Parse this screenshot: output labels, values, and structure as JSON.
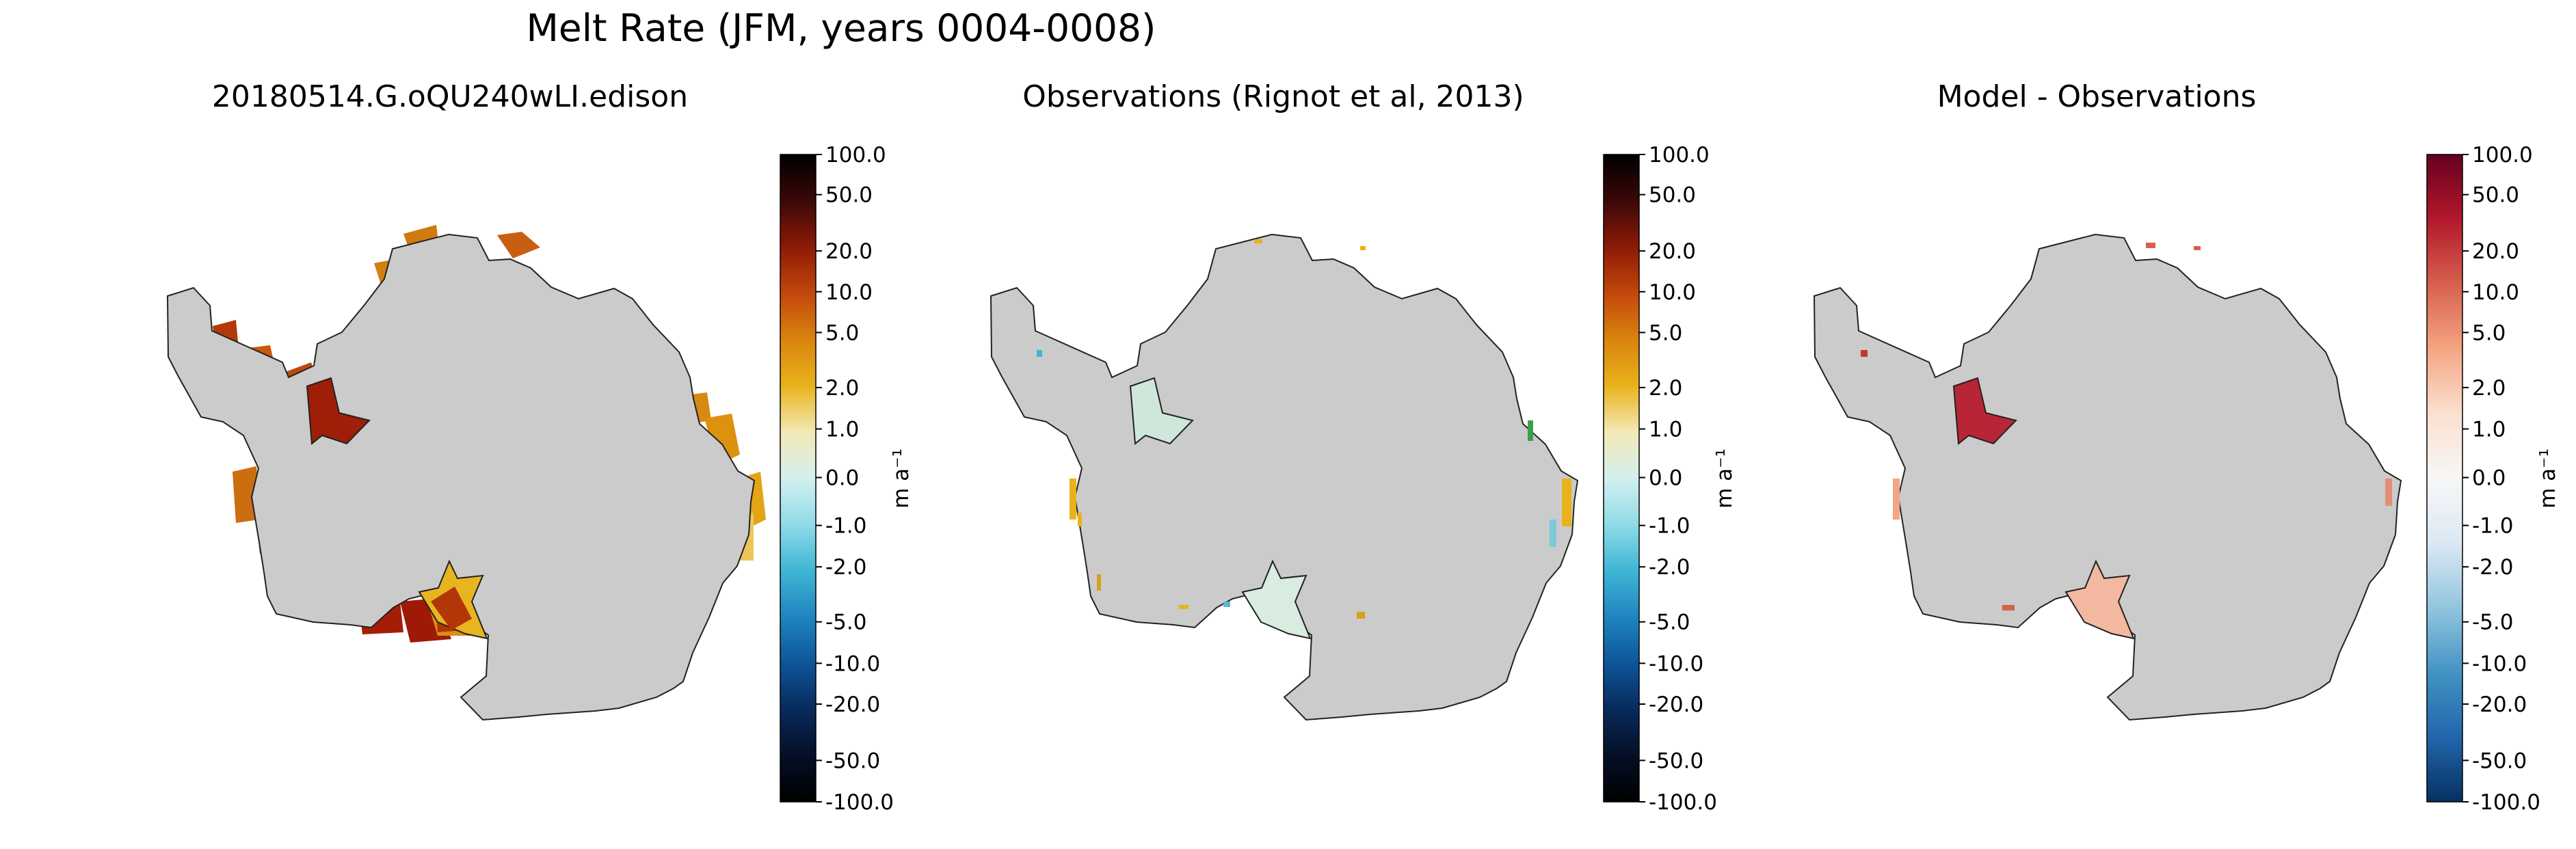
{
  "figure": {
    "title": "Melt Rate (JFM, years 0004-0008)"
  },
  "panels": [
    {
      "id": "model",
      "title": "20180514.G.oQU240wLI.edison",
      "colormap": "melt",
      "colorbar_label": "m a⁻¹",
      "ticks": [
        "100.0",
        "50.0",
        "20.0",
        "10.0",
        "5.0",
        "2.0",
        "1.0",
        "0.0",
        "-1.0",
        "-2.0",
        "-5.0",
        "-10.0",
        "-20.0",
        "-50.0",
        "-100.0"
      ]
    },
    {
      "id": "observations",
      "title": "Observations (Rignot et al, 2013)",
      "colormap": "melt",
      "colorbar_label": "m a⁻¹",
      "ticks": [
        "100.0",
        "50.0",
        "20.0",
        "10.0",
        "5.0",
        "2.0",
        "1.0",
        "0.0",
        "-1.0",
        "-2.0",
        "-5.0",
        "-10.0",
        "-20.0",
        "-50.0",
        "-100.0"
      ]
    },
    {
      "id": "difference",
      "title": "Model - Observations",
      "colormap": "diverging",
      "colorbar_label": "m a⁻¹",
      "ticks": [
        "100.0",
        "50.0",
        "20.0",
        "10.0",
        "5.0",
        "2.0",
        "1.0",
        "0.0",
        "-1.0",
        "-2.0",
        "-5.0",
        "-10.0",
        "-20.0",
        "-50.0",
        "-100.0"
      ]
    }
  ],
  "colors": {
    "land": "#cbcbcb",
    "coastline": "#222222",
    "melt_colormap": [
      "#000000",
      "#3b0808",
      "#8c1a06",
      "#c2470c",
      "#d9840e",
      "#e9b21a",
      "#f3e9b6",
      "#d4efef",
      "#8fdbe8",
      "#3fb6d4",
      "#1f85c0",
      "#0e5598",
      "#082a5c",
      "#040f26",
      "#000000"
    ],
    "diverging_colormap": [
      "#67001f",
      "#b2182b",
      "#d6604d",
      "#f4a582",
      "#fbe0d0",
      "#f7f7f7",
      "#dbe9f4",
      "#92c5de",
      "#4393c3",
      "#2166ac",
      "#053061"
    ]
  }
}
